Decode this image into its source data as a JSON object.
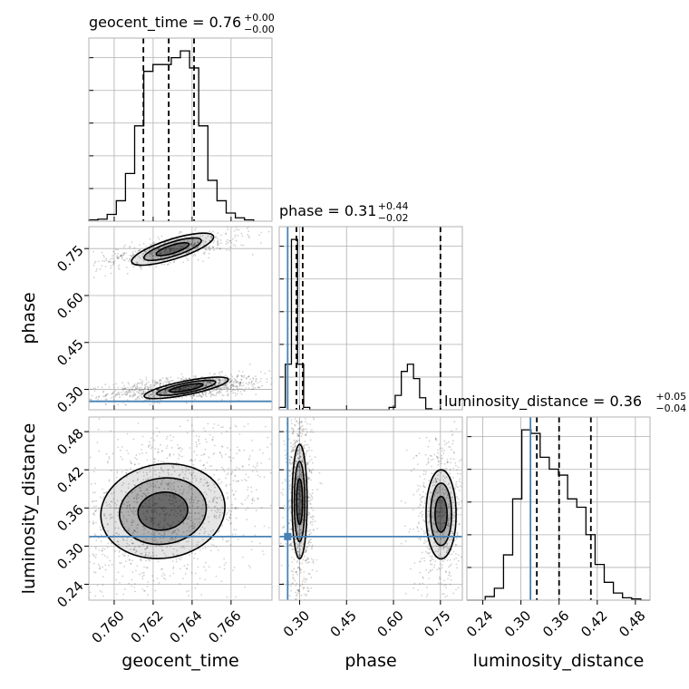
{
  "chart_data": {
    "type": "corner",
    "params": [
      "geocent_time",
      "phase",
      "luminosity_distance"
    ],
    "titles": {
      "geocent_time": {
        "name": "geocent_time",
        "median": "0.76",
        "plus": "+0.00",
        "minus": "−0.00"
      },
      "phase": {
        "name": "phase",
        "median": "0.31",
        "plus": "+0.44",
        "minus": "−0.02"
      },
      "luminosity_distance": {
        "name": "luminosity_distance",
        "median": "0.36",
        "plus": "+0.05",
        "minus": "−0.04"
      }
    },
    "axes": {
      "geocent_time": {
        "range": [
          0.7587,
          0.7681
        ],
        "ticks": [
          0.76,
          0.762,
          0.764,
          0.766
        ],
        "tick_labels": [
          "0.760",
          "0.762",
          "0.764",
          "0.766"
        ]
      },
      "phase": {
        "range": [
          0.235,
          0.82
        ],
        "ticks": [
          0.3,
          0.45,
          0.6,
          0.75
        ],
        "tick_labels": [
          "0.30",
          "0.45",
          "0.60",
          "0.75"
        ]
      },
      "luminosity_distance": {
        "range": [
          0.215,
          0.503
        ],
        "ticks": [
          0.24,
          0.3,
          0.36,
          0.42,
          0.48
        ],
        "tick_labels": [
          "0.24",
          "0.30",
          "0.36",
          "0.42",
          "0.48"
        ]
      }
    },
    "truths": {
      "phase": 0.262,
      "luminosity_distance": 0.315
    },
    "quantiles": {
      "geocent_time": [
        0.7615,
        0.7628,
        0.7641
      ],
      "phase": [
        0.29,
        0.31,
        0.75
      ],
      "luminosity_distance": [
        0.325,
        0.36,
        0.41
      ]
    },
    "histograms": {
      "geocent_time": {
        "edges_start": 0.7587,
        "bin_width": 0.00047,
        "counts": [
          2,
          3,
          10,
          30,
          70,
          140,
          220,
          230,
          230,
          240,
          250,
          225,
          140,
          60,
          30,
          12,
          5,
          2
        ]
      },
      "phase": {
        "edges_start": 0.235,
        "bin_width": 0.0195,
        "counts": [
          5,
          95,
          355,
          95,
          5,
          0,
          0,
          0,
          0,
          0,
          0,
          0,
          0,
          0,
          0,
          0,
          0,
          0,
          5,
          30,
          80,
          95,
          65,
          25,
          2
        ]
      },
      "luminosity_distance": {
        "edges_start": 0.215,
        "bin_width": 0.0144,
        "counts": [
          0,
          0,
          3,
          10,
          38,
          85,
          143,
          140,
          120,
          110,
          105,
          85,
          78,
          55,
          30,
          15,
          6,
          2,
          1,
          0
        ]
      }
    },
    "grid": true,
    "legend": "none"
  }
}
